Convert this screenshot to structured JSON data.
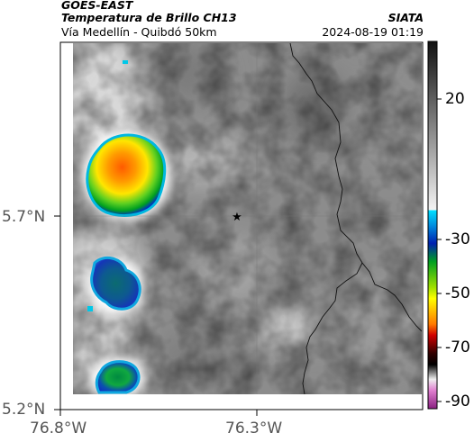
{
  "header": {
    "satellite": "GOES-EAST",
    "product": "Temperatura de Brillo CH13",
    "region": "Vía Medellín - Quibdó 50km",
    "org": "SIATA",
    "datetime": "2024-08-19 01:19"
  },
  "map": {
    "lat_ticks": [
      "5.7°N",
      "5.2°N"
    ],
    "lon_ticks": [
      "76.8°W",
      "76.3°W"
    ],
    "marker": "star"
  },
  "colorbar": {
    "labels": [
      "20",
      "-30",
      "-50",
      "-70",
      "-90"
    ]
  },
  "colors": {
    "cloud_warm": "#9a9a9a",
    "cold_core": "#ff7a00",
    "cold_mid": "#ffe600",
    "cold_green": "#00b020",
    "cold_blue": "#0030c0",
    "cold_cyan": "#00c8e8"
  }
}
